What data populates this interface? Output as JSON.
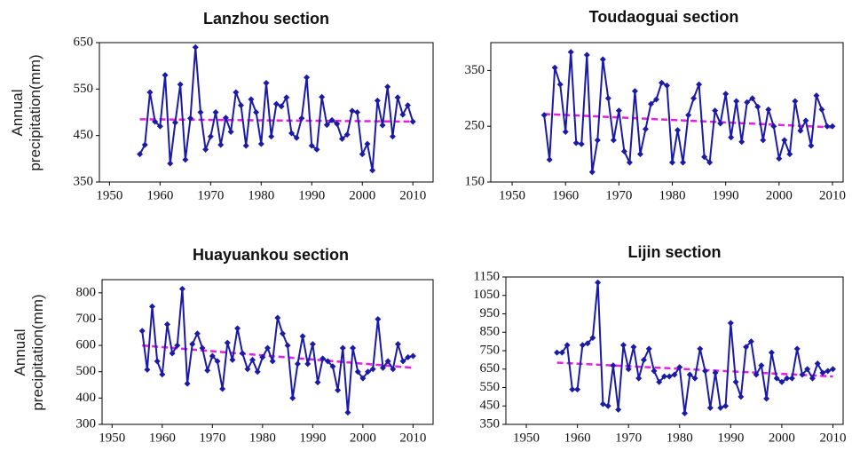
{
  "chart_data": [
    {
      "type": "line",
      "title": "Lanzhou section",
      "ylabel": "Annual precipitation(mm)",
      "x": [
        1956,
        1957,
        1958,
        1959,
        1960,
        1961,
        1962,
        1963,
        1964,
        1965,
        1966,
        1967,
        1968,
        1969,
        1970,
        1971,
        1972,
        1973,
        1974,
        1975,
        1976,
        1977,
        1978,
        1979,
        1980,
        1981,
        1982,
        1983,
        1984,
        1985,
        1986,
        1987,
        1988,
        1989,
        1990,
        1991,
        1992,
        1993,
        1994,
        1995,
        1996,
        1997,
        1998,
        1999,
        2000,
        2001,
        2002,
        2003,
        2004,
        2005,
        2006,
        2007,
        2008,
        2009,
        2010
      ],
      "series": [
        {
          "color": "#1a1aa6",
          "values": [
            410,
            430,
            543,
            480,
            470,
            580,
            390,
            478,
            560,
            398,
            487,
            640,
            500,
            420,
            448,
            500,
            430,
            488,
            458,
            543,
            515,
            428,
            528,
            500,
            432,
            563,
            448,
            518,
            513,
            532,
            455,
            445,
            487,
            575,
            428,
            420,
            533,
            473,
            483,
            475,
            443,
            452,
            503,
            500,
            410,
            432,
            375,
            525,
            472,
            555,
            448,
            532,
            495,
            515,
            480
          ]
        }
      ],
      "trend": {
        "color": "#e61ee6",
        "x": [
          1956,
          2010
        ],
        "values": [
          485,
          480
        ]
      },
      "xlim": [
        1948,
        2014
      ],
      "xticks": [
        1950,
        1960,
        1970,
        1980,
        1990,
        2000,
        2010
      ],
      "ylim": [
        350,
        650
      ],
      "yticks": [
        350,
        450,
        550,
        650
      ]
    },
    {
      "type": "line",
      "title": "Toudaoguai section",
      "x": [
        1956,
        1957,
        1958,
        1959,
        1960,
        1961,
        1962,
        1963,
        1964,
        1965,
        1966,
        1967,
        1968,
        1969,
        1970,
        1971,
        1972,
        1973,
        1974,
        1975,
        1976,
        1977,
        1978,
        1979,
        1980,
        1981,
        1982,
        1983,
        1984,
        1985,
        1986,
        1987,
        1988,
        1989,
        1990,
        1991,
        1992,
        1993,
        1994,
        1995,
        1996,
        1997,
        1998,
        1999,
        2000,
        2001,
        2002,
        2003,
        2004,
        2005,
        2006,
        2007,
        2008,
        2009,
        2010
      ],
      "series": [
        {
          "color": "#1a1aa6",
          "values": [
            270,
            190,
            355,
            325,
            240,
            383,
            220,
            218,
            378,
            168,
            225,
            370,
            300,
            225,
            278,
            205,
            185,
            313,
            200,
            245,
            290,
            298,
            328,
            323,
            185,
            243,
            185,
            270,
            300,
            325,
            195,
            185,
            278,
            255,
            308,
            230,
            295,
            222,
            293,
            300,
            285,
            225,
            280,
            250,
            192,
            225,
            200,
            295,
            242,
            260,
            215,
            305,
            280,
            250,
            250
          ]
        }
      ],
      "trend": {
        "color": "#e61ee6",
        "x": [
          1956,
          2010
        ],
        "values": [
          272,
          248
        ]
      },
      "xlim": [
        1946,
        2012
      ],
      "xticks": [
        1950,
        1960,
        1970,
        1980,
        1990,
        2000,
        2010
      ],
      "ylim": [
        150,
        400
      ],
      "yticks": [
        150,
        250,
        350
      ]
    },
    {
      "type": "line",
      "title": "Huayuankou section",
      "ylabel": "Annual precipitation(mm)",
      "x": [
        1956,
        1957,
        1958,
        1959,
        1960,
        1961,
        1962,
        1963,
        1964,
        1965,
        1966,
        1967,
        1968,
        1969,
        1970,
        1971,
        1972,
        1973,
        1974,
        1975,
        1976,
        1977,
        1978,
        1979,
        1980,
        1981,
        1982,
        1983,
        1984,
        1985,
        1986,
        1987,
        1988,
        1989,
        1990,
        1991,
        1992,
        1993,
        1994,
        1995,
        1996,
        1997,
        1998,
        1999,
        2000,
        2001,
        2002,
        2003,
        2004,
        2005,
        2006,
        2007,
        2008,
        2009,
        2010
      ],
      "series": [
        {
          "color": "#1a1aa6",
          "values": [
            655,
            508,
            748,
            540,
            490,
            680,
            570,
            600,
            815,
            455,
            605,
            645,
            590,
            505,
            560,
            540,
            435,
            610,
            545,
            665,
            570,
            510,
            545,
            500,
            555,
            590,
            540,
            705,
            645,
            600,
            400,
            530,
            635,
            530,
            605,
            460,
            550,
            540,
            520,
            430,
            590,
            345,
            590,
            500,
            475,
            500,
            510,
            700,
            515,
            540,
            510,
            605,
            540,
            555,
            560
          ]
        }
      ],
      "trend": {
        "color": "#e61ee6",
        "x": [
          1956,
          2010
        ],
        "values": [
          600,
          515
        ]
      },
      "xlim": [
        1948,
        2014
      ],
      "xticks": [
        1950,
        1960,
        1970,
        1980,
        1990,
        2000,
        2010
      ],
      "ylim": [
        300,
        850
      ],
      "yticks": [
        300,
        400,
        500,
        600,
        700,
        800
      ]
    },
    {
      "type": "line",
      "title": "Lijin section",
      "x": [
        1956,
        1957,
        1958,
        1959,
        1960,
        1961,
        1962,
        1963,
        1964,
        1965,
        1966,
        1967,
        1968,
        1969,
        1970,
        1971,
        1972,
        1973,
        1974,
        1975,
        1976,
        1977,
        1978,
        1979,
        1980,
        1981,
        1982,
        1983,
        1984,
        1985,
        1986,
        1987,
        1988,
        1989,
        1990,
        1991,
        1992,
        1993,
        1994,
        1995,
        1996,
        1997,
        1998,
        1999,
        2000,
        2001,
        2002,
        2003,
        2004,
        2005,
        2006,
        2007,
        2008,
        2009,
        2010
      ],
      "series": [
        {
          "color": "#1a1aa6",
          "values": [
            740,
            740,
            780,
            540,
            540,
            780,
            790,
            820,
            1120,
            460,
            450,
            670,
            430,
            780,
            650,
            770,
            600,
            700,
            760,
            640,
            580,
            610,
            610,
            620,
            660,
            410,
            620,
            600,
            760,
            640,
            440,
            630,
            440,
            450,
            900,
            580,
            500,
            770,
            800,
            620,
            670,
            490,
            740,
            600,
            580,
            600,
            600,
            760,
            620,
            650,
            600,
            680,
            630,
            640,
            650
          ]
        }
      ],
      "trend": {
        "color": "#e61ee6",
        "x": [
          1956,
          2010
        ],
        "values": [
          685,
          610
        ]
      },
      "xlim": [
        1946,
        2012
      ],
      "xticks": [
        1950,
        1960,
        1970,
        1980,
        1990,
        2000,
        2010
      ],
      "ylim": [
        350,
        1150
      ],
      "yticks": [
        350,
        450,
        550,
        650,
        750,
        850,
        950,
        1050,
        1150
      ]
    }
  ]
}
